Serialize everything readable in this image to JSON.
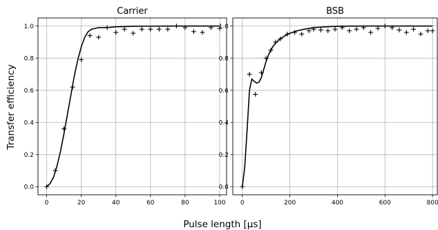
{
  "figure": {
    "xlabel": "Pulse length [μs]",
    "ylabel": "Transfer efficiency"
  },
  "chart_data": [
    {
      "type": "scatter",
      "title": "Carrier",
      "xlim": [
        -5,
        104
      ],
      "ylim": [
        -0.05,
        1.05
      ],
      "xticks": [
        0,
        20,
        40,
        60,
        80,
        100
      ],
      "yticks": [
        0.0,
        0.2,
        0.4,
        0.6,
        0.8,
        1.0
      ],
      "grid": true,
      "series": [
        {
          "kind": "measured",
          "marker": "+",
          "x": [
            0,
            5,
            10,
            15,
            20,
            25,
            30,
            35,
            40,
            45,
            50,
            55,
            60,
            65,
            70,
            75,
            80,
            85,
            90,
            95,
            100
          ],
          "y": [
            0.0,
            0.1,
            0.36,
            0.62,
            0.79,
            0.94,
            0.93,
            0.99,
            0.96,
            0.98,
            0.955,
            0.98,
            0.98,
            0.98,
            0.98,
            1.0,
            0.99,
            0.965,
            0.96,
            0.99,
            0.985
          ]
        },
        {
          "kind": "theory",
          "style": "line",
          "x": [
            0,
            2,
            4,
            6,
            8,
            10,
            12,
            14,
            16,
            18,
            20,
            22,
            24,
            26,
            28,
            30,
            32,
            35,
            40,
            50,
            60,
            70,
            80,
            90,
            100
          ],
          "y": [
            0.0,
            0.02,
            0.06,
            0.13,
            0.22,
            0.33,
            0.45,
            0.57,
            0.69,
            0.79,
            0.87,
            0.93,
            0.965,
            0.98,
            0.985,
            0.99,
            0.99,
            0.99,
            0.995,
            0.998,
            0.999,
            1.0,
            1.0,
            1.0,
            1.0
          ]
        }
      ]
    },
    {
      "type": "scatter",
      "title": "BSB",
      "xlim": [
        -40,
        820
      ],
      "ylim": [
        -0.05,
        1.05
      ],
      "xticks": [
        0,
        200,
        400,
        600,
        800
      ],
      "yticks": [
        0.0,
        0.2,
        0.4,
        0.6,
        0.8,
        1.0
      ],
      "grid": true,
      "series": [
        {
          "kind": "measured",
          "marker": "+",
          "x": [
            0,
            30,
            55,
            80,
            100,
            120,
            140,
            160,
            190,
            220,
            250,
            280,
            300,
            330,
            360,
            390,
            420,
            450,
            480,
            510,
            540,
            570,
            600,
            630,
            660,
            690,
            720,
            750,
            780,
            800
          ],
          "y": [
            0.0,
            0.7,
            0.575,
            0.71,
            0.8,
            0.85,
            0.9,
            0.92,
            0.95,
            0.96,
            0.95,
            0.97,
            0.98,
            0.975,
            0.97,
            0.98,
            0.99,
            0.97,
            0.98,
            0.99,
            0.96,
            0.985,
            1.0,
            0.99,
            0.975,
            0.96,
            0.98,
            0.95,
            0.97,
            0.97
          ]
        },
        {
          "kind": "theory",
          "style": "line",
          "x": [
            0,
            10,
            20,
            30,
            40,
            50,
            60,
            70,
            80,
            90,
            100,
            110,
            120,
            130,
            140,
            160,
            180,
            200,
            230,
            260,
            300,
            350,
            400,
            500,
            600,
            700,
            800
          ],
          "y": [
            0.0,
            0.12,
            0.35,
            0.6,
            0.67,
            0.655,
            0.645,
            0.65,
            0.68,
            0.73,
            0.78,
            0.82,
            0.85,
            0.875,
            0.895,
            0.92,
            0.94,
            0.955,
            0.97,
            0.98,
            0.99,
            0.995,
            0.998,
            1.0,
            1.0,
            1.0,
            1.0
          ]
        }
      ]
    }
  ]
}
